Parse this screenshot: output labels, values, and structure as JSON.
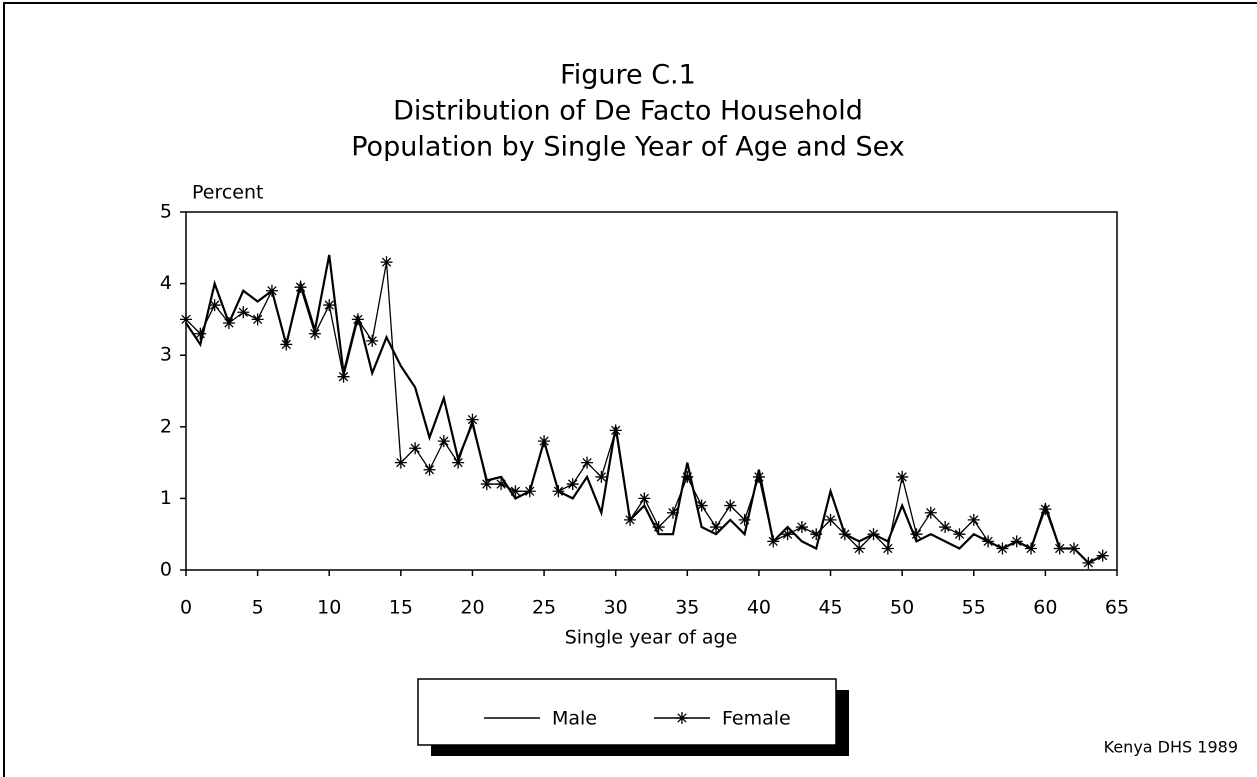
{
  "chart_data": {
    "type": "line",
    "title": "Figure C.1",
    "subtitle": [
      "Distribution of De Facto Household",
      "Population by Single Year of Age and Sex"
    ],
    "y_label": "Percent",
    "x_label": "Single year of age",
    "source": "Kenya DHS 1989",
    "x": [
      0,
      1,
      2,
      3,
      4,
      5,
      6,
      7,
      8,
      9,
      10,
      11,
      12,
      13,
      14,
      15,
      16,
      17,
      18,
      19,
      20,
      21,
      22,
      23,
      24,
      25,
      26,
      27,
      28,
      29,
      30,
      31,
      32,
      33,
      34,
      35,
      36,
      37,
      38,
      39,
      40,
      41,
      42,
      43,
      44,
      45,
      46,
      47,
      48,
      49,
      50,
      51,
      52,
      53,
      54,
      55,
      56,
      57,
      58,
      59,
      60,
      61,
      62,
      63,
      64
    ],
    "series": [
      {
        "name": "Male",
        "color": "#000000",
        "marker": "none",
        "values": [
          3.45,
          3.15,
          4.0,
          3.45,
          3.9,
          3.75,
          3.9,
          3.15,
          4.0,
          3.35,
          4.4,
          2.75,
          3.55,
          2.75,
          3.25,
          2.85,
          2.55,
          1.85,
          2.4,
          1.55,
          2.05,
          1.25,
          1.3,
          1.0,
          1.1,
          1.8,
          1.1,
          1.0,
          1.3,
          0.8,
          2.0,
          0.7,
          0.9,
          0.5,
          0.5,
          1.5,
          0.6,
          0.5,
          0.7,
          0.5,
          1.4,
          0.4,
          0.6,
          0.4,
          0.3,
          1.1,
          0.5,
          0.4,
          0.5,
          0.4,
          0.9,
          0.4,
          0.5,
          0.4,
          0.3,
          0.5,
          0.4,
          0.3,
          0.4,
          0.3,
          0.9,
          0.3,
          0.3,
          0.1,
          0.2
        ]
      },
      {
        "name": "Female",
        "color": "#000000",
        "marker": "asterisk",
        "values": [
          3.5,
          3.3,
          3.7,
          3.45,
          3.6,
          3.5,
          3.9,
          3.15,
          3.95,
          3.3,
          3.7,
          2.7,
          3.5,
          3.2,
          4.3,
          1.5,
          1.7,
          1.4,
          1.8,
          1.5,
          2.1,
          1.2,
          1.2,
          1.1,
          1.1,
          1.8,
          1.1,
          1.2,
          1.5,
          1.3,
          1.95,
          0.7,
          1.0,
          0.6,
          0.8,
          1.3,
          0.9,
          0.6,
          0.9,
          0.7,
          1.3,
          0.4,
          0.5,
          0.6,
          0.5,
          0.7,
          0.5,
          0.3,
          0.5,
          0.3,
          1.3,
          0.5,
          0.8,
          0.6,
          0.5,
          0.7,
          0.4,
          0.3,
          0.4,
          0.3,
          0.85,
          0.3,
          0.3,
          0.1,
          0.2
        ]
      }
    ],
    "xlim": [
      0,
      65
    ],
    "xticks": [
      0,
      5,
      10,
      15,
      20,
      25,
      30,
      35,
      40,
      45,
      50,
      55,
      60,
      65
    ],
    "ylim": [
      0,
      5
    ],
    "yticks": [
      0,
      1,
      2,
      3,
      4,
      5
    ],
    "grid": false,
    "legend": "bottom"
  }
}
